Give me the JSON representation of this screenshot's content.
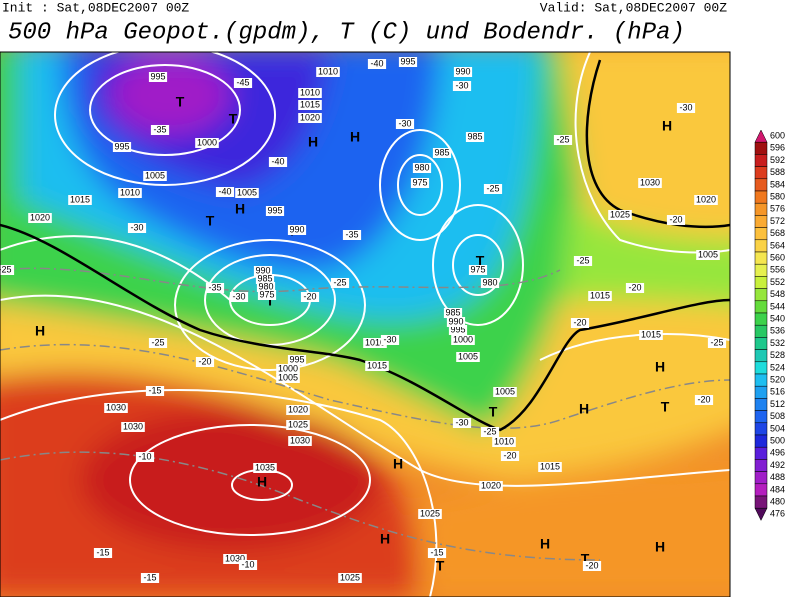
{
  "header": {
    "init": "Init : Sat,08DEC2007 00Z",
    "valid": "Valid: Sat,08DEC2007 00Z",
    "title": "500 hPa Geopot.(gpdm), T (C) und Bodendr. (hPa)"
  },
  "colorbar": {
    "levels": [
      600,
      596,
      592,
      588,
      584,
      580,
      576,
      572,
      568,
      564,
      560,
      556,
      552,
      548,
      544,
      540,
      536,
      532,
      528,
      524,
      520,
      516,
      512,
      508,
      504,
      500,
      496,
      492,
      488,
      484,
      480,
      476
    ],
    "colors": [
      "#d2186e",
      "#a01010",
      "#c81e1e",
      "#dc3c1e",
      "#e65a1e",
      "#f0781e",
      "#f59628",
      "#faaa32",
      "#fcc03c",
      "#fad246",
      "#f5e650",
      "#e6f050",
      "#c8f03c",
      "#96e63c",
      "#64dc3c",
      "#3cd24b",
      "#28c864",
      "#1ec88c",
      "#1ec8b4",
      "#1edcdc",
      "#1ebef0",
      "#1ea0f0",
      "#1e82f0",
      "#1e64f0",
      "#1e46e6",
      "#1e28dc",
      "#5a1edc",
      "#821ed2",
      "#a01ec8",
      "#b41ebe",
      "#781478",
      "#500a5a"
    ]
  },
  "map": {
    "centers": [
      "H",
      "H",
      "H",
      "H",
      "H",
      "H",
      "H",
      "H",
      "H",
      "H",
      "H",
      "H",
      "T",
      "T",
      "T",
      "T",
      "T",
      "T",
      "T",
      "T",
      "T",
      "T"
    ],
    "isobars": [
      "995",
      "995",
      "1000",
      "1005",
      "1010",
      "1015",
      "1020",
      "1030",
      "1030",
      "1030",
      "1035",
      "1030",
      "1025",
      "1025",
      "1020",
      "1025",
      "1020",
      "1015",
      "1010",
      "1005",
      "1005",
      "1000",
      "995",
      "990",
      "985",
      "980",
      "975",
      "985",
      "980",
      "975",
      "985",
      "990",
      "995",
      "1010",
      "1010",
      "1015",
      "1020",
      "1005",
      "995",
      "990",
      "990",
      "985",
      "980",
      "975",
      "995",
      "1000",
      "1005",
      "1010",
      "1015",
      "1015",
      "1015",
      "1005",
      "1020",
      "1025",
      "1030"
    ],
    "temperatures": [
      "-45",
      "-35",
      "-40",
      "-40",
      "-35",
      "-35",
      "-30",
      "-20",
      "-30",
      "-25",
      "-25",
      "-20",
      "-15",
      "-10",
      "-15",
      "-15",
      "-10",
      "-15",
      "-20",
      "-20",
      "-25",
      "-30",
      "-30",
      "-25",
      "-30",
      "-25",
      "-25",
      "-30",
      "-25",
      "-20",
      "-20",
      "-20",
      "-25",
      "-20",
      "-30",
      "-40"
    ]
  }
}
